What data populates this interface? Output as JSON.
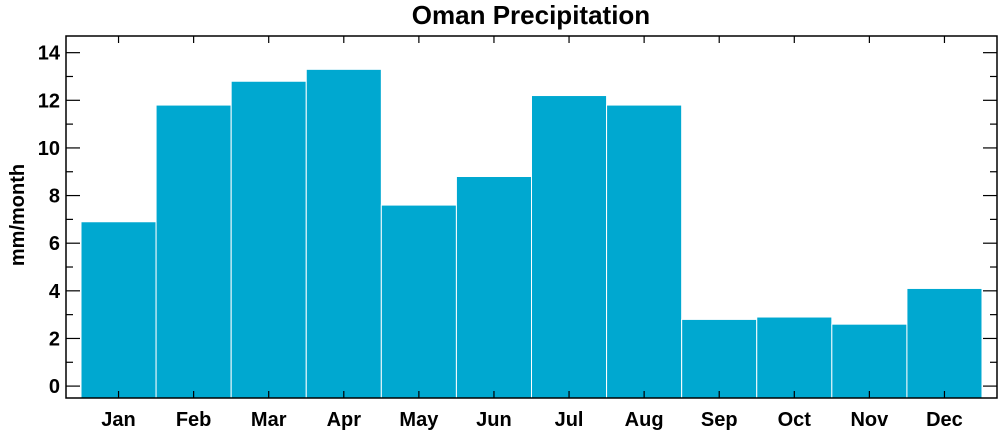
{
  "chart_data": {
    "type": "bar",
    "title": "Oman Precipitation",
    "xlabel": "",
    "ylabel": "mm/month",
    "categories": [
      "Jan",
      "Feb",
      "Mar",
      "Apr",
      "May",
      "Jun",
      "Jul",
      "Aug",
      "Sep",
      "Oct",
      "Nov",
      "Dec"
    ],
    "values": [
      6.9,
      11.8,
      12.8,
      13.3,
      7.6,
      8.8,
      12.2,
      11.8,
      2.8,
      2.9,
      2.6,
      4.1
    ],
    "ylim": [
      -0.5,
      14.7
    ],
    "yticks": [
      0,
      2,
      4,
      6,
      8,
      10,
      12,
      14
    ],
    "ytick_labels": [
      "0",
      "2",
      "4",
      "6",
      "8",
      "10",
      "12",
      "14"
    ],
    "grid": false,
    "legend": "none",
    "bar_color": "#00a8d0"
  }
}
